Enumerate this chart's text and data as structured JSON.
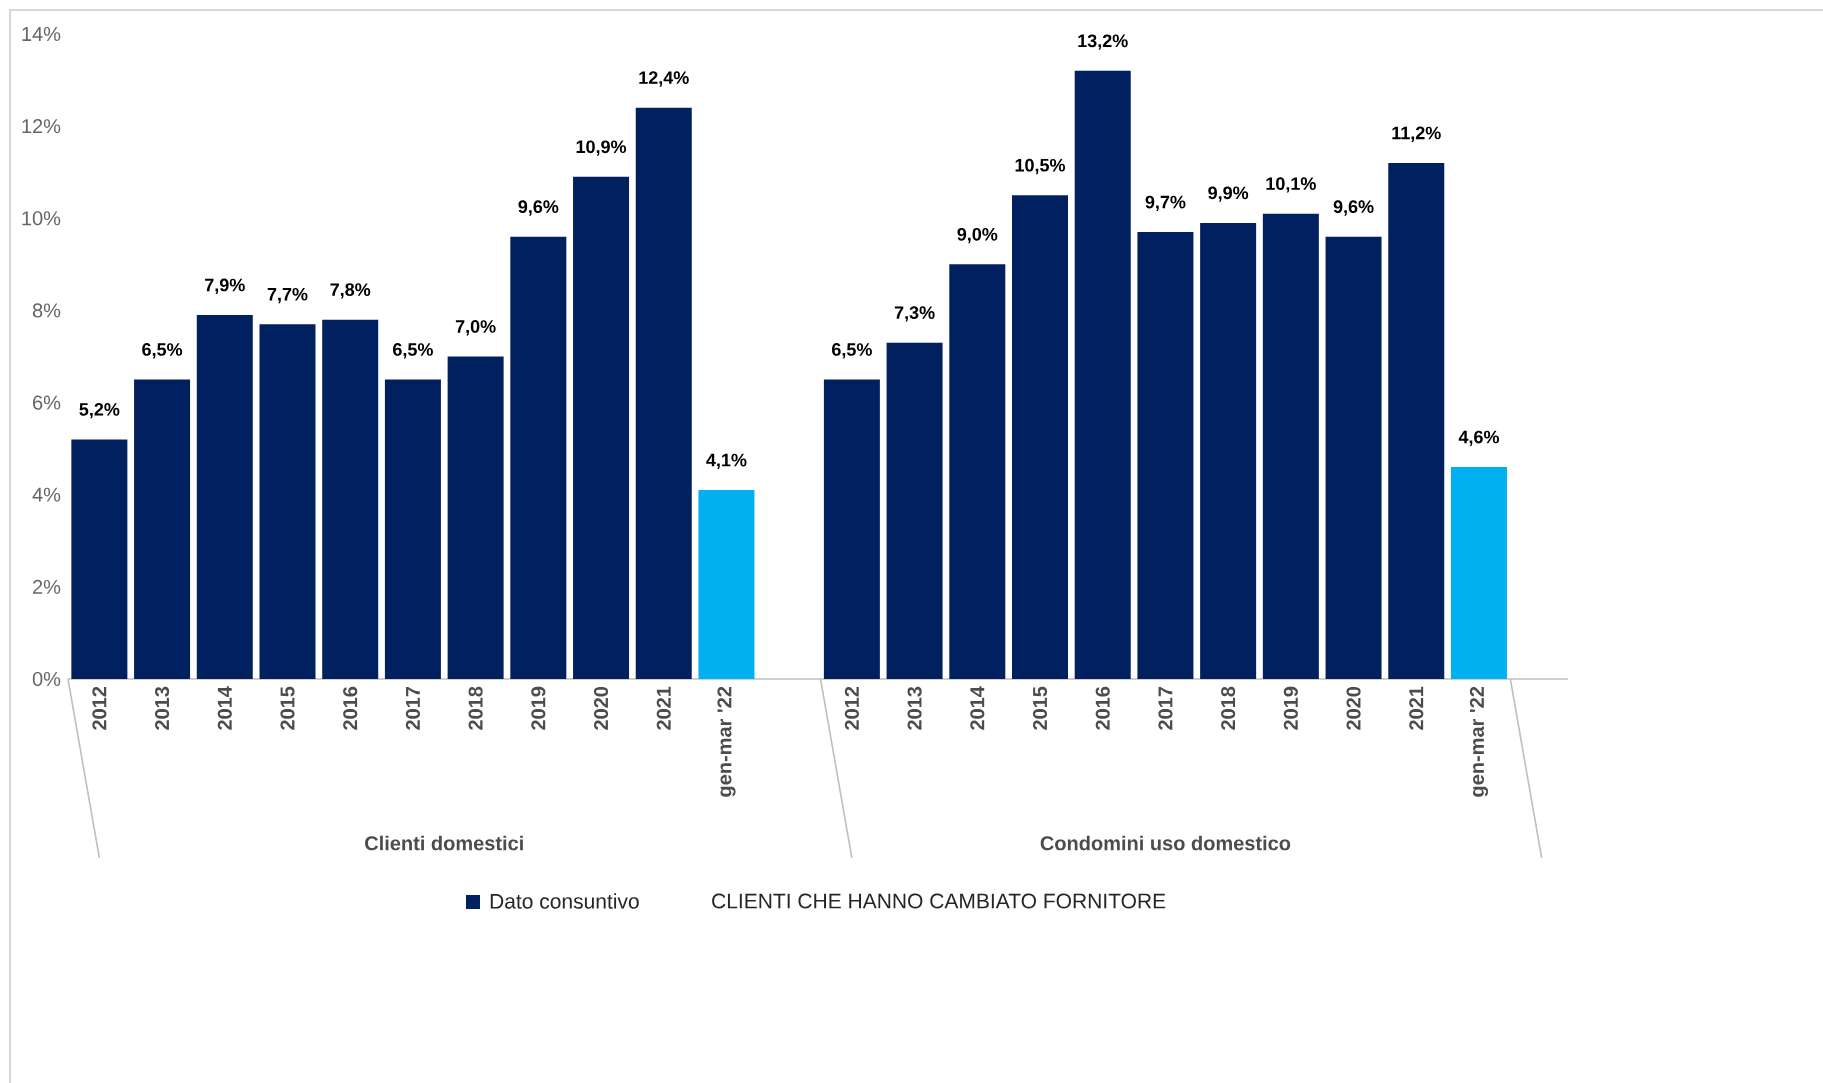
{
  "chart_data": {
    "type": "bar",
    "categories": [
      "2012",
      "2013",
      "2014",
      "2015",
      "2016",
      "2017",
      "2018",
      "2019",
      "2020",
      "2021",
      "gen-mar '22",
      null,
      "2012",
      "2013",
      "2014",
      "2015",
      "2016",
      "2017",
      "2018",
      "2019",
      "2020",
      "2021",
      "gen-mar '22"
    ],
    "series": [
      {
        "name": "Dato consuntivo",
        "color": "#002060",
        "values": [
          5.2,
          6.5,
          7.9,
          7.7,
          7.8,
          6.5,
          7.0,
          9.6,
          10.9,
          12.4,
          4.1,
          null,
          6.5,
          7.3,
          9.0,
          10.5,
          13.2,
          9.7,
          9.9,
          10.1,
          9.6,
          11.2,
          4.6
        ],
        "colors": [
          "#002060",
          "#002060",
          "#002060",
          "#002060",
          "#002060",
          "#002060",
          "#002060",
          "#002060",
          "#002060",
          "#002060",
          "#00b0f0",
          "#002060",
          "#002060",
          "#002060",
          "#002060",
          "#002060",
          "#002060",
          "#002060",
          "#002060",
          "#002060",
          "#002060",
          "#002060",
          "#00b0f0"
        ],
        "value_labels": [
          "5,2%",
          "6,5%",
          "7,9%",
          "7,7%",
          "7,8%",
          "6,5%",
          "7,0%",
          "9,6%",
          "10,9%",
          "12,4%",
          "4,1%",
          null,
          "6,5%",
          "7,3%",
          "9,0%",
          "10,5%",
          "13,2%",
          "9,7%",
          "9,9%",
          "10,1%",
          "9,6%",
          "11,2%",
          "4,6%"
        ]
      }
    ],
    "ylim": [
      0,
      14
    ],
    "yticks": [
      {
        "value": 0,
        "label": "0%"
      },
      {
        "value": 2,
        "label": "2%"
      },
      {
        "value": 4,
        "label": "4%"
      },
      {
        "value": 6,
        "label": "6%"
      },
      {
        "value": 8,
        "label": "8%"
      },
      {
        "value": 10,
        "label": "10%"
      },
      {
        "value": 12,
        "label": "12%"
      },
      {
        "value": 14,
        "label": "14%"
      }
    ],
    "grid": false,
    "legend": "bottom",
    "annotations": [
      "Clienti domestici",
      "Condomini uso domestico",
      "CLIENTI CHE HANNO CAMBIATO FORNITORE"
    ]
  }
}
